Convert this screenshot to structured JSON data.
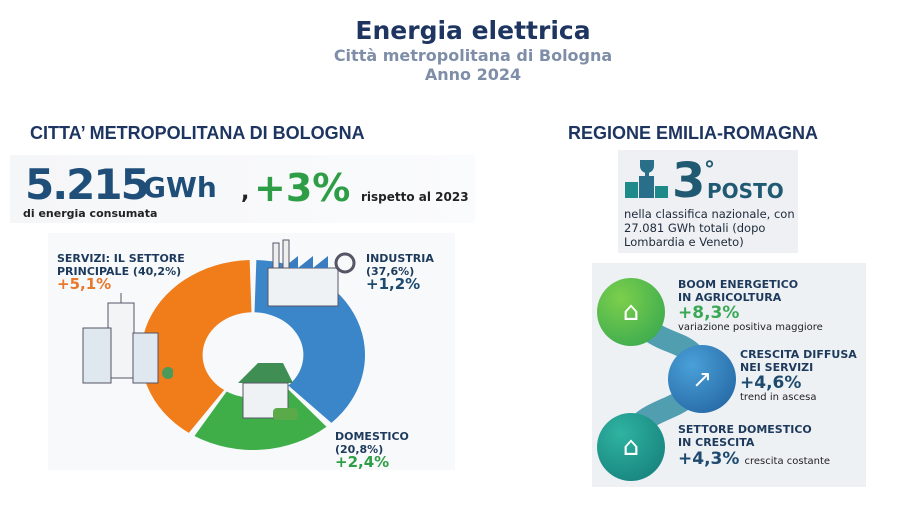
{
  "header": {
    "title": "Energia elettrica",
    "subtitle": "Città metropolitana di Bologna",
    "year": "Anno 2024"
  },
  "left": {
    "heading": "CITTA’ METROPOLITANA DI BOLOGNA",
    "total_value": "5.215",
    "total_unit": "GWh",
    "total_caption": "di energia consumata",
    "comma": ",",
    "change": "+3%",
    "change_caption": "rispetto al 2023",
    "sectors": [
      {
        "label_line1": "SERVIZI: IL SETTORE",
        "label_line2": "PRINCIPALE (40,2%)",
        "share": 40.2,
        "delta": "+5,1%",
        "color": "#f07d1a"
      },
      {
        "label_line1": "INDUSTRIA",
        "label_line2": "(37,6%)",
        "share": 37.6,
        "delta": "+1,2%",
        "color": "#3a86c8"
      },
      {
        "label_line1": "DOMESTICO (20,8%)",
        "label_line2": "",
        "share": 20.8,
        "delta": "+2,4%",
        "color": "#3fae49"
      }
    ],
    "delta_colors": {
      "servizi": "#e8782a",
      "industria": "#1d4a6e",
      "domestico": "#2e9e46"
    }
  },
  "right": {
    "heading": "REGIONE EMILIA-ROMAGNA",
    "rank": {
      "number": "3",
      "degree": "°",
      "label": "POSTO",
      "description": "nella classifica nazionale, con 27.081 GWh totali (dopo Lombardia e Veneto)",
      "icon": "trophy-podium-icon"
    },
    "growth": [
      {
        "line1": "BOOM ENERGETICO",
        "line2": "IN AGRICOLTURA",
        "value": "+8,3%",
        "note": "variazione positiva maggiore",
        "icon": "farm-icon",
        "color": "#4cb848",
        "value_color": "#3aa855"
      },
      {
        "line1": "CRESCITA DIFFUSA",
        "line2": "NEI SERVIZI",
        "value": "+4,6%",
        "note": "trend in ascesa",
        "icon": "growth-chart-icon",
        "color": "#2f7fc0",
        "value_color": "#1d4a6e"
      },
      {
        "line1": "SETTORE DOMESTICO",
        "line2": "IN CRESCITA",
        "value": "+4,3%",
        "note": "crescita costante",
        "icon": "house-icon",
        "color": "#1e9a8e",
        "value_color": "#1d4a6e"
      }
    ]
  }
}
